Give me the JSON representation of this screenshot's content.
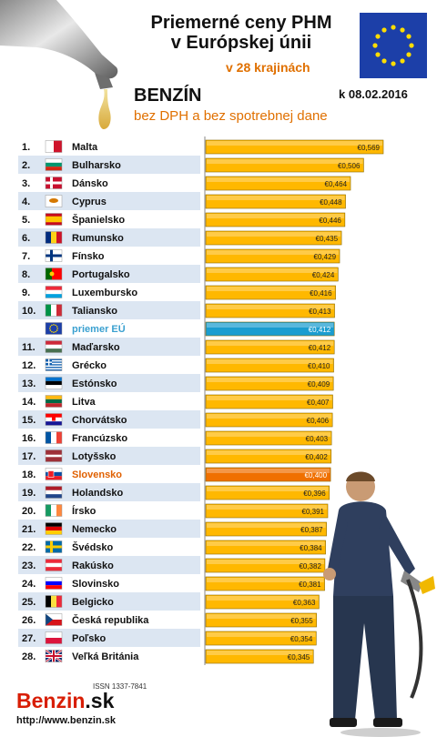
{
  "header": {
    "title_line1": "Priemerné ceny PHM",
    "title_line2": "v Európskej únii",
    "subtitle": "v 28 krajinách",
    "fuel": "BENZÍN",
    "date": "k 08.02.2016",
    "note": "bez DPH a bez spotrebnej dane"
  },
  "footer": {
    "logo_main": "Benzin",
    "logo_tld": ".sk",
    "issn": "ISSN 1337-7841",
    "url": "http://www.benzin.sk"
  },
  "colors": {
    "bar": "#ffb800",
    "bar_eu": "#1a9dd0",
    "bar_sk": "#f07000",
    "row_alt": "#dce6f2",
    "eu_label": "#3aa0d0",
    "sk_label": "#e06000"
  },
  "chart_data": {
    "type": "bar",
    "orientation": "horizontal",
    "currency": "€",
    "xlim": [
      0,
      0.6
    ],
    "rows": [
      {
        "rank": "1.",
        "country": "Malta",
        "value": 0.569,
        "label": "€0,569",
        "flag": "mt"
      },
      {
        "rank": "2.",
        "country": "Bulharsko",
        "value": 0.506,
        "label": "€0,506",
        "flag": "bg"
      },
      {
        "rank": "3.",
        "country": "Dánsko",
        "value": 0.464,
        "label": "€0,464",
        "flag": "dk"
      },
      {
        "rank": "4.",
        "country": "Cyprus",
        "value": 0.448,
        "label": "€0,448",
        "flag": "cy"
      },
      {
        "rank": "5.",
        "country": "Španielsko",
        "value": 0.446,
        "label": "€0,446",
        "flag": "es"
      },
      {
        "rank": "6.",
        "country": "Rumunsko",
        "value": 0.435,
        "label": "€0,435",
        "flag": "ro"
      },
      {
        "rank": "7.",
        "country": "Fínsko",
        "value": 0.429,
        "label": "€0,429",
        "flag": "fi"
      },
      {
        "rank": "8.",
        "country": "Portugalsko",
        "value": 0.424,
        "label": "€0,424",
        "flag": "pt"
      },
      {
        "rank": "9.",
        "country": "Luxembursko",
        "value": 0.416,
        "label": "€0,416",
        "flag": "lu"
      },
      {
        "rank": "10.",
        "country": "Taliansko",
        "value": 0.413,
        "label": "€0,413",
        "flag": "it"
      },
      {
        "rank": "",
        "country": "priemer EÚ",
        "value": 0.412,
        "label": "€0,412",
        "flag": "eu",
        "highlight": "eu"
      },
      {
        "rank": "11.",
        "country": "Maďarsko",
        "value": 0.412,
        "label": "€0,412",
        "flag": "hu"
      },
      {
        "rank": "12.",
        "country": "Grécko",
        "value": 0.41,
        "label": "€0,410",
        "flag": "gr"
      },
      {
        "rank": "13.",
        "country": "Estónsko",
        "value": 0.409,
        "label": "€0,409",
        "flag": "ee"
      },
      {
        "rank": "14.",
        "country": "Litva",
        "value": 0.407,
        "label": "€0,407",
        "flag": "lt"
      },
      {
        "rank": "15.",
        "country": "Chorvátsko",
        "value": 0.406,
        "label": "€0,406",
        "flag": "hr"
      },
      {
        "rank": "16.",
        "country": "Francúzsko",
        "value": 0.403,
        "label": "€0,403",
        "flag": "fr"
      },
      {
        "rank": "17.",
        "country": "Lotyšsko",
        "value": 0.402,
        "label": "€0,402",
        "flag": "lv"
      },
      {
        "rank": "18.",
        "country": "Slovensko",
        "value": 0.4,
        "label": "€0,400",
        "flag": "sk",
        "highlight": "sk"
      },
      {
        "rank": "19.",
        "country": "Holandsko",
        "value": 0.396,
        "label": "€0,396",
        "flag": "nl"
      },
      {
        "rank": "20.",
        "country": "Írsko",
        "value": 0.391,
        "label": "€0,391",
        "flag": "ie"
      },
      {
        "rank": "21.",
        "country": "Nemecko",
        "value": 0.387,
        "label": "€0,387",
        "flag": "de"
      },
      {
        "rank": "22.",
        "country": "Švédsko",
        "value": 0.384,
        "label": "€0,384",
        "flag": "se"
      },
      {
        "rank": "23.",
        "country": "Rakúsko",
        "value": 0.382,
        "label": "€0,382",
        "flag": "at"
      },
      {
        "rank": "24.",
        "country": "Slovinsko",
        "value": 0.381,
        "label": "€0,381",
        "flag": "si"
      },
      {
        "rank": "25.",
        "country": "Belgicko",
        "value": 0.363,
        "label": "€0,363",
        "flag": "be"
      },
      {
        "rank": "26.",
        "country": "Česká republika",
        "value": 0.355,
        "label": "€0,355",
        "flag": "cz"
      },
      {
        "rank": "27.",
        "country": "Poľsko",
        "value": 0.354,
        "label": "€0,354",
        "flag": "pl"
      },
      {
        "rank": "28.",
        "country": "Veľká Británia",
        "value": 0.345,
        "label": "€0,345",
        "flag": "gb"
      }
    ]
  }
}
